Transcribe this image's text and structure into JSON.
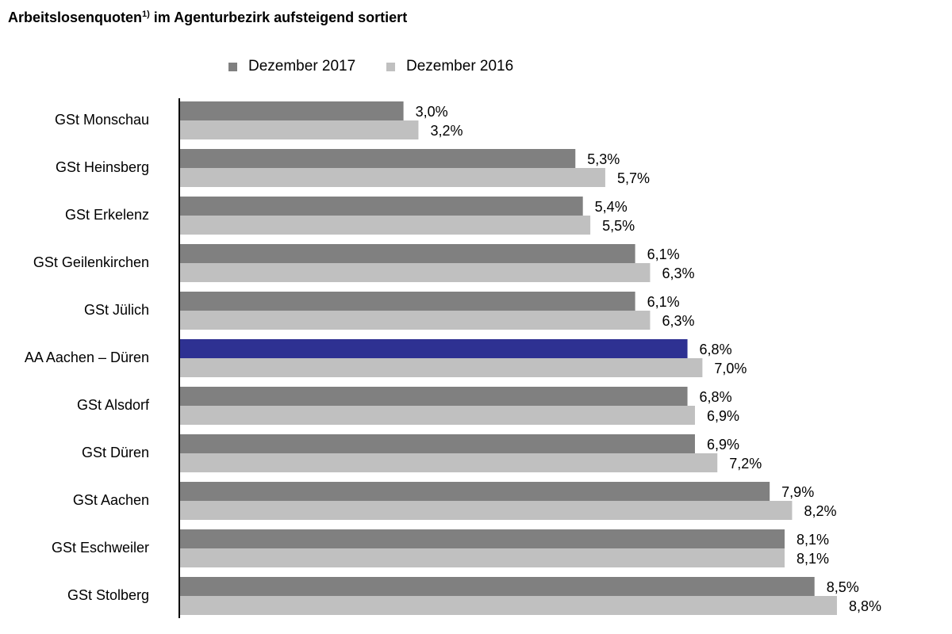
{
  "title": {
    "main": "Arbeitslosenquoten",
    "footnote": "1)",
    "rest": " im Agenturbezirk aufsteigend sortiert"
  },
  "colors": {
    "series_2017": "#808080",
    "series_2016": "#c0c0c0",
    "highlight_2017": "#2e3192",
    "axis": "#000000"
  },
  "chart_data": {
    "type": "bar",
    "orientation": "horizontal",
    "title": "Arbeitslosenquoten 1) im Agenturbezirk aufsteigend sortiert",
    "categories": [
      "GSt Monschau",
      "GSt Heinsberg",
      "GSt Erkelenz",
      "GSt Geilenkirchen",
      "GSt Jülich",
      "AA Aachen – Düren",
      "GSt Alsdorf",
      "GSt Düren",
      "GSt Aachen",
      "GSt Eschweiler",
      "GSt Stolberg"
    ],
    "series": [
      {
        "name": "Dezember 2017",
        "values": [
          3.0,
          5.3,
          5.4,
          6.1,
          6.1,
          6.8,
          6.8,
          6.9,
          7.9,
          8.1,
          8.5
        ],
        "labels": [
          "3,0%",
          "5,3%",
          "5,4%",
          "6,1%",
          "6,1%",
          "6,8%",
          "6,8%",
          "6,9%",
          "7,9%",
          "8,1%",
          "8,5%"
        ]
      },
      {
        "name": "Dezember 2016",
        "values": [
          3.2,
          5.7,
          5.5,
          6.3,
          6.3,
          7.0,
          6.9,
          7.2,
          8.2,
          8.1,
          8.8
        ],
        "labels": [
          "3,2%",
          "5,7%",
          "5,5%",
          "6,3%",
          "6,3%",
          "7,0%",
          "6,9%",
          "7,2%",
          "8,2%",
          "8,1%",
          "8,8%"
        ]
      }
    ],
    "highlight_category": "AA Aachen – Düren",
    "xlim": [
      0,
      10
    ],
    "grid": false,
    "legend_position": "top"
  }
}
